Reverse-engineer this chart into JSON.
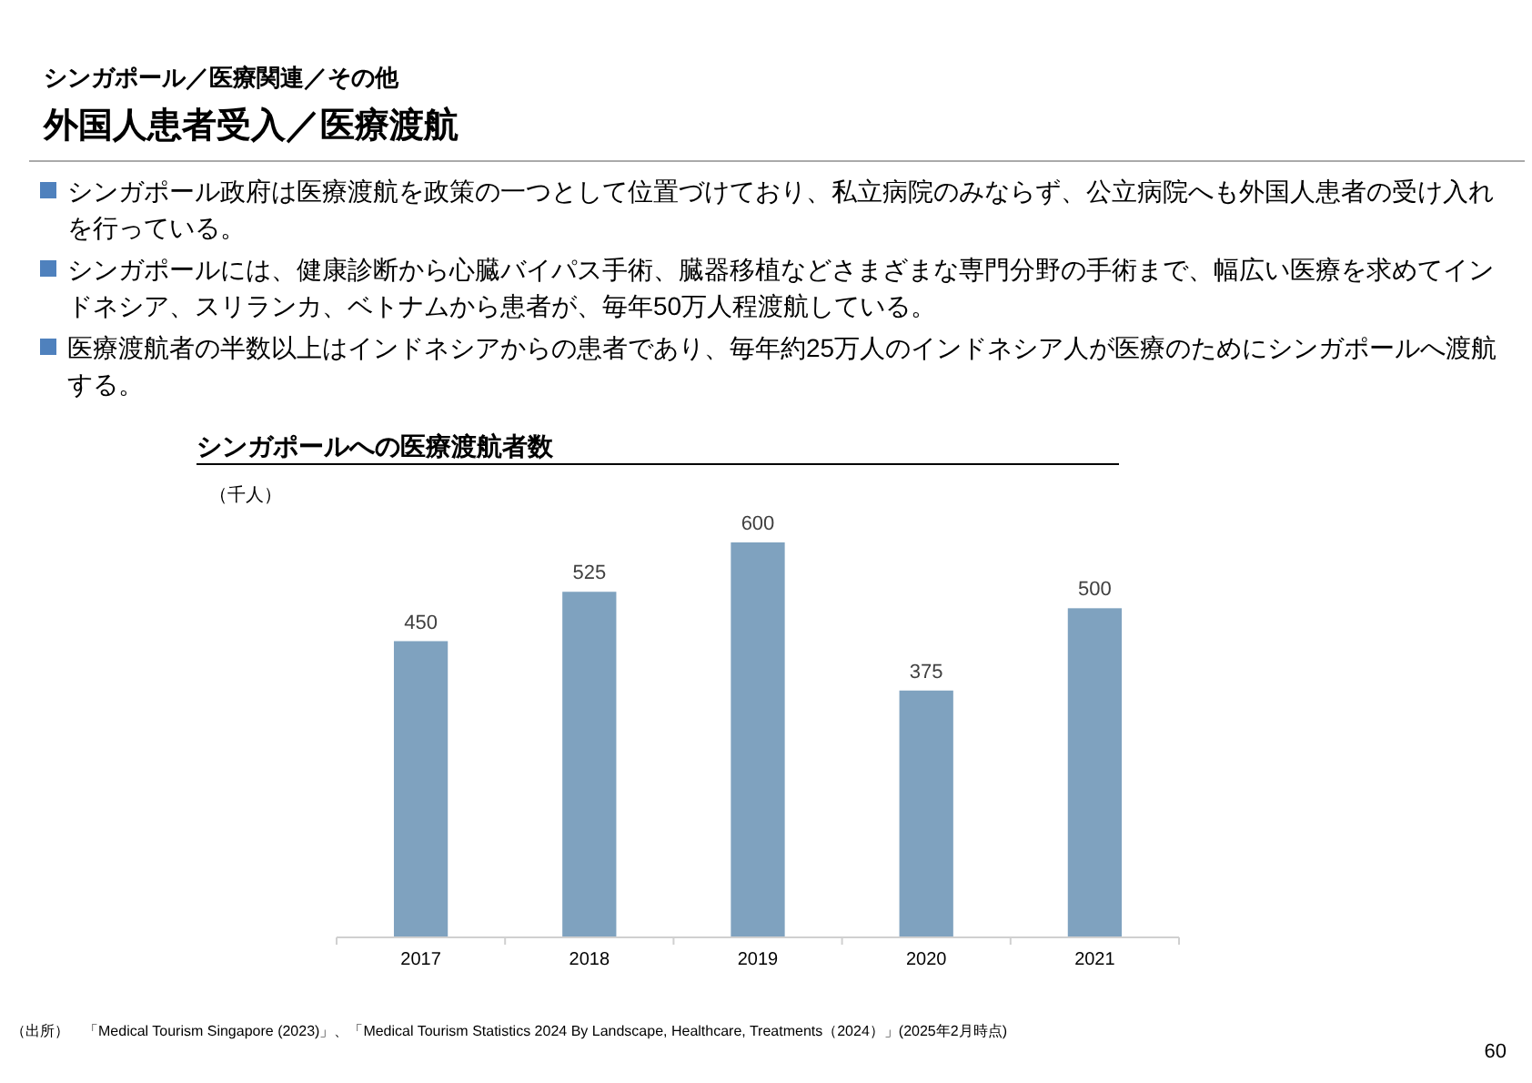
{
  "chart_data": {
    "type": "bar",
    "title": "シンガポールへの医療渡航者数",
    "ylabel": "（千人）",
    "categories": [
      "2017",
      "2018",
      "2019",
      "2020",
      "2021"
    ],
    "values": [
      450,
      525,
      600,
      375,
      500
    ],
    "color": "#7fa2bf",
    "data_labels": true,
    "annotations": [
      "シンガポール／医療関連／その他",
      "外国人患者受入／医療渡航",
      "シンガポール政府は医療渡航を政策の一つとして位置づけており、私立病院のみならず、公立病院へも外国人患者の受け入れを行っている。",
      "シンガポールには、健康診断から心臓バイパス手術、臓器移植などさまざまな専門分野の手術まで、幅広い医療を求めてインドネシア、スリランカ、ベトナムから患者が、毎年50万人程渡航している。",
      "医療渡航者の半数以上はインドネシアからの患者であり、毎年約25万人のインドネシア人が医療のためにシンガポールへ渡航する。",
      "（出所）　「Medical Tourism Singapore (2023)」、「Medical Tourism Statistics 2024 By Landscape, Healthcare, Treatments（2024）」(2025年2月時点)",
      "60"
    ]
  }
}
